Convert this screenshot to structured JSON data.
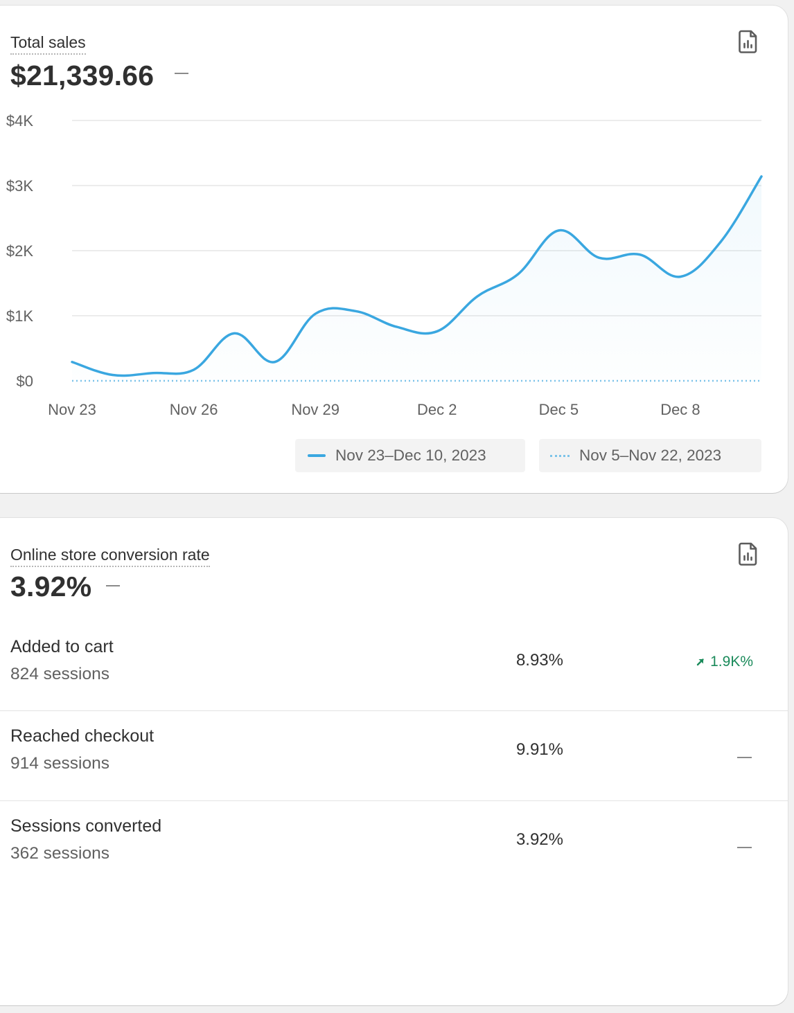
{
  "sales_card": {
    "title": "Total sales",
    "value": "$21,339.66",
    "change_icon": "dash-icon",
    "report_icon": "report-file-icon",
    "legend": [
      {
        "label": "Nov 23–Dec 10, 2023",
        "style": "solid"
      },
      {
        "label": "Nov 5–Nov 22, 2023",
        "style": "dotted"
      }
    ]
  },
  "chart_data": {
    "type": "line",
    "x": [
      "Nov 23",
      "Nov 24",
      "Nov 25",
      "Nov 26",
      "Nov 27",
      "Nov 28",
      "Nov 29",
      "Nov 30",
      "Dec 1",
      "Dec 2",
      "Dec 3",
      "Dec 4",
      "Dec 5",
      "Dec 6",
      "Dec 7",
      "Dec 8",
      "Dec 9",
      "Dec 10"
    ],
    "x_ticks": [
      "Nov 23",
      "Nov 26",
      "Nov 29",
      "Dec 2",
      "Dec 5",
      "Dec 8"
    ],
    "y_ticks": [
      "$0",
      "$1K",
      "$2K",
      "$3K",
      "$4K"
    ],
    "ylim": [
      0,
      4000
    ],
    "series": [
      {
        "name": "Nov 23–Dec 10, 2023",
        "style": "solid",
        "color": "#3aa7e0",
        "values": [
          290,
          90,
          120,
          170,
          730,
          290,
          1030,
          1070,
          830,
          760,
          1300,
          1640,
          2310,
          1890,
          1940,
          1600,
          2140,
          3140
        ]
      },
      {
        "name": "Nov 5–Nov 22, 2023",
        "style": "dotted",
        "color": "#7cc3e9",
        "values": [
          0,
          0,
          0,
          0,
          0,
          0,
          0,
          0,
          0,
          0,
          0,
          0,
          0,
          0,
          0,
          0,
          0,
          0
        ]
      }
    ],
    "grid": true,
    "legend_position": "bottom-right"
  },
  "conversion_card": {
    "title": "Online store conversion rate",
    "value": "3.92%",
    "change_icon": "dash-icon",
    "report_icon": "report-file-icon",
    "rows": [
      {
        "label": "Added to cart",
        "sessions": "824 sessions",
        "rate": "8.93%",
        "change": "1.9K%",
        "change_direction": "up",
        "change_color": "#1a8a5a"
      },
      {
        "label": "Reached checkout",
        "sessions": "914 sessions",
        "rate": "9.91%",
        "change": "",
        "change_direction": "none"
      },
      {
        "label": "Sessions converted",
        "sessions": "362 sessions",
        "rate": "3.92%",
        "change": "",
        "change_direction": "none"
      }
    ]
  }
}
